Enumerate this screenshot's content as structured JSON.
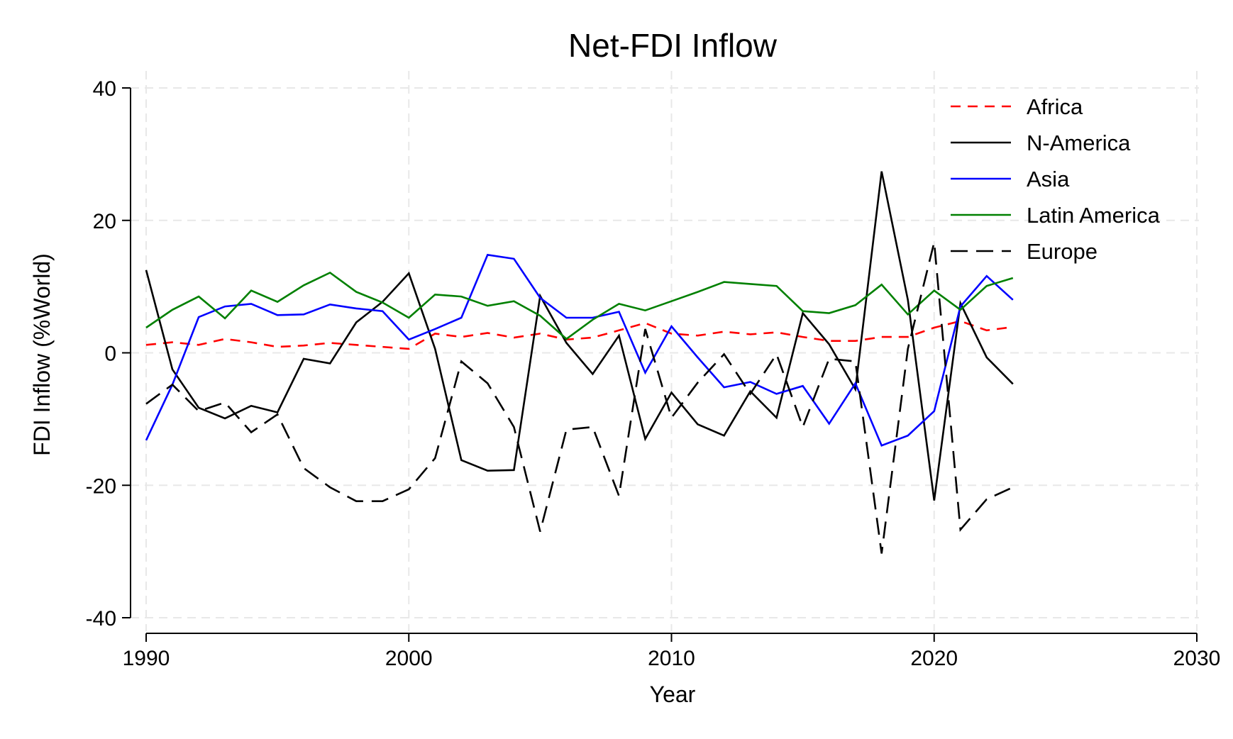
{
  "chart_data": {
    "type": "line",
    "title": "Net-FDI Inflow",
    "xlabel": "Year",
    "ylabel": "FDI Inflow (%World)",
    "xlim": [
      1990,
      2030
    ],
    "ylim": [
      -40,
      40
    ],
    "xticks": [
      1990,
      2000,
      2010,
      2020,
      2030
    ],
    "yticks": [
      -40,
      -20,
      0,
      20,
      40
    ],
    "grid": true,
    "legend_position": "top-right",
    "x": [
      1990,
      1991,
      1992,
      1993,
      1994,
      1995,
      1996,
      1997,
      1998,
      1999,
      2000,
      2001,
      2002,
      2003,
      2004,
      2005,
      2006,
      2007,
      2008,
      2009,
      2010,
      2011,
      2012,
      2013,
      2014,
      2015,
      2016,
      2017,
      2018,
      2019,
      2020,
      2021,
      2022,
      2023
    ],
    "series": [
      {
        "name": "Africa",
        "color": "#ff0000",
        "dash": "dashed",
        "values": [
          1.2,
          1.6,
          1.2,
          2.1,
          1.6,
          0.9,
          1.1,
          1.5,
          1.2,
          0.9,
          0.6,
          2.9,
          2.4,
          3.0,
          2.3,
          2.9,
          2.0,
          2.3,
          3.4,
          4.5,
          2.9,
          2.6,
          3.2,
          2.8,
          3.1,
          2.4,
          1.8,
          1.8,
          2.4,
          2.4,
          3.8,
          4.8,
          3.4,
          3.9
        ]
      },
      {
        "name": "N-America",
        "color": "#000000",
        "dash": "solid",
        "values": [
          12.5,
          -2.5,
          -8.3,
          -9.9,
          -8.0,
          -9.0,
          -0.9,
          -1.6,
          4.6,
          7.7,
          12.0,
          0.6,
          -16.2,
          -17.8,
          -17.7,
          8.6,
          1.5,
          -3.2,
          2.6,
          -13.0,
          -6.0,
          -10.8,
          -12.5,
          -5.8,
          -9.8,
          6.0,
          1.3,
          -5.5,
          27.4,
          8.0,
          -22.3,
          7.5,
          -0.7,
          -4.7
        ]
      },
      {
        "name": "Asia",
        "color": "#0000ff",
        "dash": "solid",
        "values": [
          -13.2,
          -4.8,
          5.4,
          7.0,
          7.4,
          5.7,
          5.8,
          7.3,
          6.7,
          6.3,
          2.0,
          3.6,
          5.3,
          14.8,
          14.2,
          8.3,
          5.3,
          5.3,
          6.2,
          -3.0,
          4.0,
          -0.7,
          -5.2,
          -4.4,
          -6.2,
          -5.0,
          -10.7,
          -4.6,
          -14.0,
          -12.5,
          -8.8,
          7.0,
          11.6,
          8.0
        ]
      },
      {
        "name": "Latin America",
        "color": "#008000",
        "dash": "solid",
        "values": [
          3.8,
          6.5,
          8.5,
          5.2,
          9.4,
          7.7,
          10.2,
          12.1,
          9.2,
          7.6,
          5.3,
          8.8,
          8.5,
          7.1,
          7.8,
          5.6,
          2.1,
          5.0,
          7.4,
          6.4,
          7.8,
          9.2,
          10.7,
          10.4,
          10.1,
          6.3,
          6.0,
          7.2,
          10.3,
          5.8,
          9.4,
          6.5,
          10.1,
          11.3
        ]
      },
      {
        "name": "Europe",
        "color": "#000000",
        "dash": "longdash",
        "values": [
          -7.7,
          -4.8,
          -8.8,
          -7.5,
          -12.0,
          -9.3,
          -17.4,
          -20.3,
          -22.4,
          -22.4,
          -20.6,
          -15.9,
          -1.3,
          -4.6,
          -11.2,
          -27.0,
          -11.6,
          -11.2,
          -21.6,
          3.6,
          -9.8,
          -4.5,
          -0.2,
          -6.2,
          -0.2,
          -11.2,
          -0.9,
          -1.3,
          -30.3,
          0.6,
          16.7,
          -26.7,
          -22.1,
          -20.3
        ]
      }
    ]
  }
}
